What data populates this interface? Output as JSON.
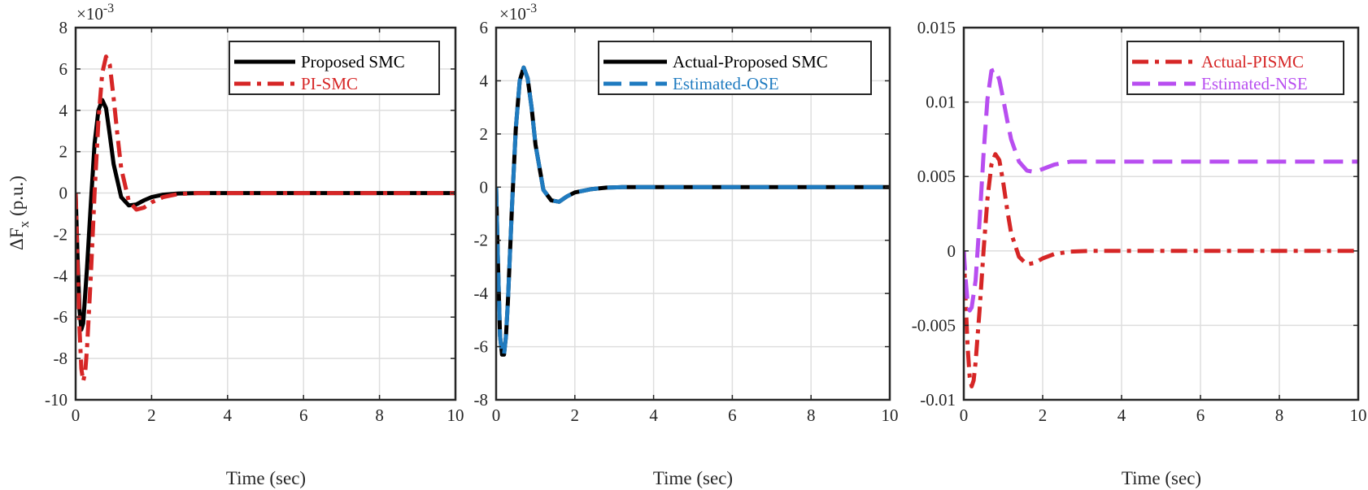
{
  "figure": {
    "ylabel_main": "ΔF",
    "ylabel_sub": "x",
    "ylabel_unit": "(p.u.)"
  },
  "chart_data": [
    {
      "type": "line",
      "title": "",
      "xlabel": "Time (sec)",
      "ylabel": "ΔF x (p.u.)",
      "exponent": "×10",
      "exponent_power": "-3",
      "xlim": [
        0,
        10
      ],
      "ylim": [
        -10,
        8
      ],
      "xticks": [
        0,
        2,
        4,
        6,
        8,
        10
      ],
      "yticks": [
        -10,
        -8,
        -6,
        -4,
        -2,
        0,
        2,
        4,
        6,
        8
      ],
      "xtick_labels": [
        "0",
        "2",
        "4",
        "6",
        "8",
        "10"
      ],
      "ytick_labels": [
        "-10",
        "-8",
        "-6",
        "-4",
        "-2",
        "0",
        "2",
        "4",
        "6",
        "8"
      ],
      "grid": true,
      "legend_position": "top-right",
      "series": [
        {
          "name": "Proposed SMC",
          "color": "#000000",
          "style": "solid",
          "x": [
            0,
            0.05,
            0.1,
            0.15,
            0.2,
            0.3,
            0.4,
            0.5,
            0.6,
            0.7,
            0.8,
            0.9,
            1.0,
            1.2,
            1.4,
            1.6,
            1.8,
            2.0,
            2.3,
            2.7,
            3.2,
            4,
            5,
            6,
            7,
            8,
            9,
            10
          ],
          "y": [
            0,
            -3.0,
            -5.6,
            -6.6,
            -6.3,
            -3.6,
            -0.5,
            2.4,
            4.0,
            4.5,
            4.1,
            2.8,
            1.4,
            -0.2,
            -0.6,
            -0.55,
            -0.35,
            -0.2,
            -0.08,
            -0.02,
            0,
            0,
            0,
            0,
            0,
            0,
            0,
            0
          ]
        },
        {
          "name": "PI-SMC",
          "color": "#d62626",
          "style": "dashdot",
          "x": [
            0,
            0.05,
            0.1,
            0.15,
            0.2,
            0.25,
            0.3,
            0.4,
            0.5,
            0.6,
            0.7,
            0.8,
            0.9,
            1.0,
            1.1,
            1.2,
            1.4,
            1.6,
            1.8,
            2.0,
            2.3,
            2.7,
            3.2,
            4,
            5,
            6,
            7,
            8,
            9,
            10
          ],
          "y": [
            0,
            -3.5,
            -6.5,
            -8.5,
            -9.1,
            -8.7,
            -7.5,
            -4.0,
            0.0,
            3.5,
            5.8,
            6.6,
            6.2,
            4.6,
            2.8,
            1.2,
            -0.4,
            -0.8,
            -0.7,
            -0.45,
            -0.2,
            -0.05,
            0,
            0,
            0,
            0,
            0,
            0,
            0,
            0
          ]
        }
      ]
    },
    {
      "type": "line",
      "title": "",
      "xlabel": "Time (sec)",
      "ylabel": "",
      "exponent": "×10",
      "exponent_power": "-3",
      "xlim": [
        0,
        10
      ],
      "ylim": [
        -8,
        6
      ],
      "xticks": [
        0,
        2,
        4,
        6,
        8,
        10
      ],
      "yticks": [
        -8,
        -6,
        -4,
        -2,
        0,
        2,
        4,
        6
      ],
      "xtick_labels": [
        "0",
        "2",
        "4",
        "6",
        "8",
        "10"
      ],
      "ytick_labels": [
        "-8",
        "-6",
        "-4",
        "-2",
        "0",
        "2",
        "4",
        "6"
      ],
      "grid": true,
      "legend_position": "top-right",
      "series": [
        {
          "name": "Actual-Proposed SMC",
          "color": "#000000",
          "style": "solid",
          "x": [
            0,
            0.05,
            0.1,
            0.15,
            0.2,
            0.25,
            0.3,
            0.4,
            0.5,
            0.6,
            0.7,
            0.8,
            0.9,
            1.0,
            1.2,
            1.4,
            1.6,
            1.8,
            2.0,
            2.4,
            2.8,
            3.2,
            4,
            5,
            6,
            7,
            8,
            9,
            10
          ],
          "y": [
            0,
            -3.0,
            -5.6,
            -6.3,
            -6.3,
            -5.6,
            -4.3,
            -0.8,
            2.2,
            4.0,
            4.5,
            4.1,
            3.0,
            1.6,
            -0.1,
            -0.5,
            -0.55,
            -0.35,
            -0.2,
            -0.08,
            -0.02,
            0,
            0,
            0,
            0,
            0,
            0,
            0,
            0
          ]
        },
        {
          "name": "Estimated-OSE",
          "color": "#1f7bc0",
          "style": "dashed",
          "x": [
            0,
            0.05,
            0.1,
            0.15,
            0.2,
            0.25,
            0.3,
            0.4,
            0.5,
            0.6,
            0.7,
            0.8,
            0.9,
            1.0,
            1.2,
            1.4,
            1.6,
            1.8,
            2.0,
            2.4,
            2.8,
            3.2,
            4,
            5,
            6,
            7,
            8,
            9,
            10
          ],
          "y": [
            0,
            -3.0,
            -5.6,
            -6.3,
            -6.3,
            -5.6,
            -4.3,
            -0.8,
            2.2,
            4.0,
            4.5,
            4.1,
            3.0,
            1.6,
            -0.1,
            -0.5,
            -0.55,
            -0.35,
            -0.2,
            -0.08,
            -0.02,
            0,
            0,
            0,
            0,
            0,
            0,
            0,
            0
          ]
        }
      ]
    },
    {
      "type": "line",
      "title": "",
      "xlabel": "Time (sec)",
      "ylabel": "",
      "exponent": "",
      "exponent_power": "",
      "xlim": [
        0,
        10
      ],
      "ylim": [
        -0.01,
        0.015
      ],
      "xticks": [
        0,
        2,
        4,
        6,
        8,
        10
      ],
      "yticks": [
        -0.01,
        -0.005,
        0,
        0.005,
        0.01,
        0.015
      ],
      "xtick_labels": [
        "0",
        "2",
        "4",
        "6",
        "8",
        "10"
      ],
      "ytick_labels": [
        "-0.01",
        "-0.005",
        "0",
        "0.005",
        "0.01",
        "0.015"
      ],
      "grid": true,
      "legend_position": "top-right",
      "series": [
        {
          "name": "Actual-PISMC",
          "color": "#d62626",
          "style": "dashdot",
          "x": [
            0,
            0.05,
            0.1,
            0.15,
            0.2,
            0.25,
            0.3,
            0.4,
            0.5,
            0.6,
            0.7,
            0.8,
            0.9,
            1.0,
            1.1,
            1.2,
            1.4,
            1.6,
            1.8,
            2.0,
            2.3,
            2.7,
            3.2,
            4,
            5,
            6,
            7,
            8,
            9,
            10
          ],
          "y": [
            0,
            -0.0035,
            -0.0065,
            -0.0085,
            -0.0091,
            -0.0087,
            -0.0075,
            -0.004,
            0.0,
            0.0035,
            0.0058,
            0.0065,
            0.0061,
            0.0046,
            0.0028,
            0.0012,
            -0.0004,
            -0.0009,
            -0.0008,
            -0.0005,
            -0.0002,
            -5e-05,
            0,
            0,
            0,
            0,
            0,
            0,
            0,
            0
          ]
        },
        {
          "name": "Estimated-NSE",
          "color": "#b84ef0",
          "style": "dashed",
          "x": [
            0,
            0.05,
            0.1,
            0.15,
            0.2,
            0.3,
            0.4,
            0.5,
            0.6,
            0.7,
            0.8,
            0.9,
            1.0,
            1.1,
            1.2,
            1.4,
            1.6,
            1.8,
            2.0,
            2.3,
            2.7,
            3.2,
            4,
            5,
            6,
            7,
            8,
            9,
            10
          ],
          "y": [
            0,
            -0.002,
            -0.0035,
            -0.004,
            -0.0038,
            -0.002,
            0.002,
            0.0065,
            0.0102,
            0.0121,
            0.0122,
            0.0115,
            0.0102,
            0.0088,
            0.0075,
            0.006,
            0.0054,
            0.0053,
            0.0055,
            0.0058,
            0.006,
            0.006,
            0.006,
            0.006,
            0.006,
            0.006,
            0.006,
            0.006,
            0.006
          ]
        }
      ]
    }
  ]
}
